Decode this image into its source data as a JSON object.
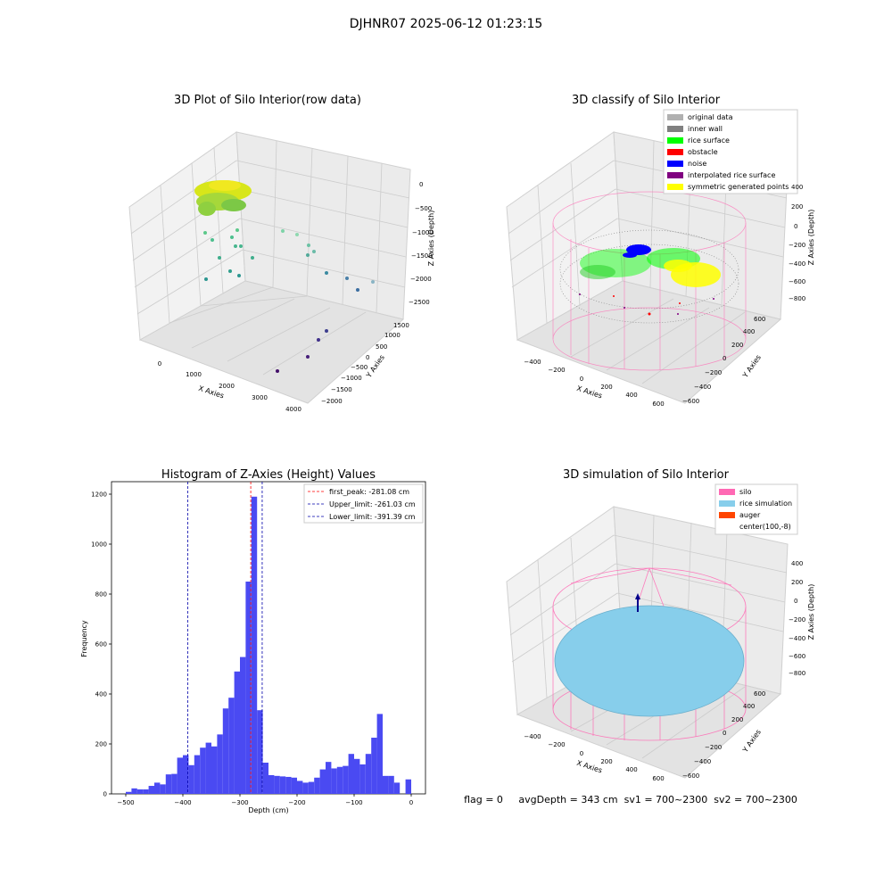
{
  "suptitle": "DJHNR07 2025-06-12 01:23:15",
  "colors": {
    "pane": "#f2f2f2",
    "pane_dark": "#e6e6e6",
    "grid": "#cfcfcf",
    "hist_bar": "#4a4af2",
    "peak_line": "#ff0000",
    "limit_line": "#0000aa",
    "silo": "#ff69b4",
    "rice_sim": "#87ceeb",
    "auger": "#ff4500",
    "original_data": "#b0b0b0",
    "inner_wall": "#808080",
    "rice_surface": "#00ff00",
    "obstacle": "#ff0000",
    "noise": "#0000ff",
    "interpolated": "#800080",
    "symmetric": "#ffff00"
  },
  "chart_data": [
    {
      "type": "scatter",
      "title": "3D Plot of Silo Interior(row data)",
      "xlabel": "X Axies",
      "ylabel": "Y Axies",
      "zlabel": "Z Axies (Depth)",
      "x_ticks": [
        "0",
        "1000",
        "2000",
        "3000",
        "4000"
      ],
      "y_ticks": [
        "1500",
        "1000",
        "500",
        "0",
        "−500",
        "−1000",
        "−1500",
        "−2000"
      ],
      "z_ticks": [
        "0",
        "−500",
        "−1000",
        "−1500",
        "−2000",
        "−2500"
      ],
      "grid": true
    },
    {
      "type": "scatter",
      "title": "3D classify of Silo Interior",
      "xlabel": "X Axies",
      "ylabel": "Y Axies",
      "zlabel": "Z Axies (Depth)",
      "x_ticks": [
        "−400",
        "−200",
        "0",
        "200",
        "400",
        "600"
      ],
      "y_ticks": [
        "600",
        "400",
        "200",
        "0",
        "−200",
        "−400",
        "−600"
      ],
      "z_ticks": [
        "400",
        "200",
        "0",
        "−200",
        "−400",
        "−600",
        "−800"
      ],
      "legend_position": "top-right",
      "legend": [
        {
          "label": "original data",
          "color": "#b0b0b0"
        },
        {
          "label": "inner wall",
          "color": "#808080"
        },
        {
          "label": "rice surface",
          "color": "#00ff00"
        },
        {
          "label": "obstacle",
          "color": "#ff0000"
        },
        {
          "label": "noise",
          "color": "#0000ff"
        },
        {
          "label": "interpolated rice surface",
          "color": "#800080"
        },
        {
          "label": "symmetric generated points",
          "color": "#ffff00"
        }
      ],
      "grid": true
    },
    {
      "type": "bar",
      "title": "Histogram of Z-Axies (Height) Values",
      "xlabel": "Depth (cm)",
      "ylabel": "Frequency",
      "xlim": [
        -525,
        25
      ],
      "ylim": [
        0,
        1250
      ],
      "x_ticks": [
        -500,
        -400,
        -300,
        -200,
        -100,
        0
      ],
      "x_tick_labels": [
        "−500",
        "−400",
        "−300",
        "−200",
        "−100",
        "0"
      ],
      "y_ticks": [
        0,
        200,
        400,
        600,
        800,
        1000,
        1200
      ],
      "bin_start": -500,
      "bin_width": 10,
      "values": [
        8,
        22,
        18,
        18,
        32,
        45,
        38,
        78,
        80,
        145,
        155,
        115,
        155,
        185,
        205,
        190,
        238,
        342,
        385,
        490,
        548,
        850,
        1190,
        335,
        125,
        75,
        72,
        70,
        68,
        65,
        52,
        45,
        48,
        65,
        98,
        128,
        102,
        108,
        112,
        160,
        140,
        118,
        160,
        225,
        320,
        72,
        72,
        45,
        0,
        58
      ],
      "vlines": [
        {
          "x": -281.08,
          "color": "#ff0000",
          "label": "first_peak: -281.08 cm"
        },
        {
          "x": -261.03,
          "color": "#0000aa",
          "label": "Upper_limit: -261.03 cm"
        },
        {
          "x": -391.39,
          "color": "#0000aa",
          "label": "Lower_limit: -391.39 cm"
        }
      ],
      "legend_position": "top-right",
      "grid": false
    },
    {
      "type": "scatter",
      "title": "3D simulation of Silo Interior",
      "xlabel": "X Axies",
      "ylabel": "Y Axies",
      "zlabel": "Z Axies (Depth)",
      "x_ticks": [
        "−400",
        "−200",
        "0",
        "200",
        "400",
        "600"
      ],
      "y_ticks": [
        "600",
        "400",
        "200",
        "0",
        "−200",
        "−400",
        "−600"
      ],
      "z_ticks": [
        "400",
        "200",
        "0",
        "−200",
        "−400",
        "−600",
        "−800"
      ],
      "legend_position": "top-right",
      "legend": [
        {
          "label": "silo",
          "color": "#ff69b4"
        },
        {
          "label": "rice simulation",
          "color": "#87ceeb"
        },
        {
          "label": "auger",
          "color": "#ff4500"
        },
        {
          "label": "center(100,-8)",
          "color": "#ffffff"
        }
      ],
      "grid": true
    }
  ],
  "footer": "flag = 0     avgDepth = 343 cm  sv1 = 700~2300  sv2 = 700~2300"
}
